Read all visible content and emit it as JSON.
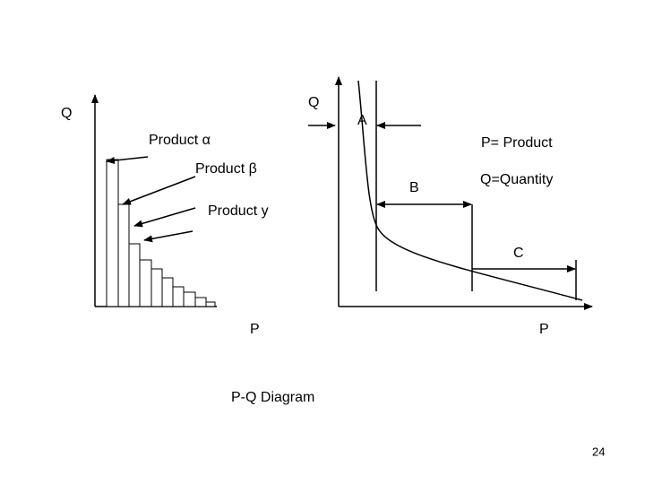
{
  "left_diagram": {
    "y_axis_label": "Q",
    "x_axis_label": "P",
    "labels": [
      "Product α",
      "Product β",
      "Product y"
    ]
  },
  "arrow_label": "Q",
  "right_diagram": {
    "x_axis_label": "P",
    "annotations": [
      "A",
      "B",
      "C"
    ],
    "legend": [
      "P= Product",
      "Q=Quantity"
    ]
  },
  "caption": "P-Q Diagram",
  "page_number": "24"
}
